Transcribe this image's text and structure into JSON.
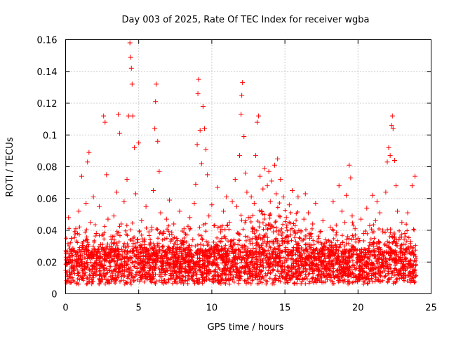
{
  "chart_data": {
    "type": "scatter",
    "title": "Day 003 of 2025, Rate Of TEC Index for receiver wgba",
    "xlabel": "GPS time / hours",
    "ylabel": "ROTI / TECUs",
    "xlim": [
      0,
      25
    ],
    "ylim": [
      0,
      0.16
    ],
    "x_ticks": [
      0,
      5,
      10,
      15,
      20,
      25
    ],
    "x_tick_labels": [
      "0",
      "5",
      "10",
      "15",
      "20",
      "25"
    ],
    "y_ticks": [
      0,
      0.02,
      0.04,
      0.06,
      0.08,
      0.1,
      0.12,
      0.14,
      0.16
    ],
    "y_tick_labels": [
      "0",
      "0.02",
      "0.04",
      "0.06",
      "0.08",
      "0.1",
      "0.12",
      "0.14",
      "0.16"
    ],
    "grid": true,
    "marker": "+",
    "series": [
      {
        "name": "ROTI",
        "color": "#ff0000",
        "points": [
          [
            0.1,
            0.021
          ],
          [
            0.2,
            0.048
          ],
          [
            0.3,
            0.012
          ],
          [
            0.4,
            0.035
          ],
          [
            0.5,
            0.018
          ],
          [
            0.6,
            0.027
          ],
          [
            0.7,
            0.041
          ],
          [
            0.8,
            0.015
          ],
          [
            0.9,
            0.052
          ],
          [
            1.0,
            0.024
          ],
          [
            1.1,
            0.074
          ],
          [
            1.2,
            0.033
          ],
          [
            1.3,
            0.019
          ],
          [
            1.4,
            0.057
          ],
          [
            1.5,
            0.083
          ],
          [
            1.6,
            0.089
          ],
          [
            1.7,
            0.045
          ],
          [
            1.8,
            0.026
          ],
          [
            1.9,
            0.061
          ],
          [
            2.0,
            0.014
          ],
          [
            2.1,
            0.038
          ],
          [
            2.2,
            0.022
          ],
          [
            2.3,
            0.055
          ],
          [
            2.4,
            0.031
          ],
          [
            2.5,
            0.017
          ],
          [
            2.6,
            0.112
          ],
          [
            2.7,
            0.108
          ],
          [
            2.8,
            0.075
          ],
          [
            2.9,
            0.047
          ],
          [
            3.0,
            0.023
          ],
          [
            3.1,
            0.036
          ],
          [
            3.2,
            0.013
          ],
          [
            3.3,
            0.049
          ],
          [
            3.4,
            0.028
          ],
          [
            3.5,
            0.064
          ],
          [
            3.6,
            0.113
          ],
          [
            3.7,
            0.101
          ],
          [
            3.8,
            0.044
          ],
          [
            3.9,
            0.018
          ],
          [
            4.0,
            0.058
          ],
          [
            4.1,
            0.029
          ],
          [
            4.2,
            0.072
          ],
          [
            4.3,
            0.112
          ],
          [
            4.4,
            0.158
          ],
          [
            4.45,
            0.149
          ],
          [
            4.5,
            0.142
          ],
          [
            4.55,
            0.132
          ],
          [
            4.6,
            0.112
          ],
          [
            4.7,
            0.092
          ],
          [
            4.8,
            0.063
          ],
          [
            4.9,
            0.034
          ],
          [
            5.0,
            0.095
          ],
          [
            5.1,
            0.021
          ],
          [
            5.2,
            0.046
          ],
          [
            5.3,
            0.011
          ],
          [
            5.4,
            0.031
          ],
          [
            5.5,
            0.055
          ],
          [
            5.6,
            0.024
          ],
          [
            5.7,
            0.039
          ],
          [
            5.8,
            0.017
          ],
          [
            5.9,
            0.042
          ],
          [
            6.0,
            0.065
          ],
          [
            6.1,
            0.104
          ],
          [
            6.15,
            0.121
          ],
          [
            6.2,
            0.132
          ],
          [
            6.3,
            0.096
          ],
          [
            6.4,
            0.077
          ],
          [
            6.5,
            0.051
          ],
          [
            6.6,
            0.027
          ],
          [
            6.7,
            0.038
          ],
          [
            6.8,
            0.014
          ],
          [
            6.9,
            0.047
          ],
          [
            7.0,
            0.022
          ],
          [
            7.1,
            0.059
          ],
          [
            7.2,
            0.033
          ],
          [
            7.3,
            0.026
          ],
          [
            7.4,
            0.044
          ],
          [
            7.5,
            0.018
          ],
          [
            7.6,
            0.035
          ],
          [
            7.7,
            0.023
          ],
          [
            7.8,
            0.052
          ],
          [
            7.9,
            0.029
          ],
          [
            8.0,
            0.016
          ],
          [
            8.1,
            0.041
          ],
          [
            8.2,
            0.025
          ],
          [
            8.3,
            0.037
          ],
          [
            8.4,
            0.013
          ],
          [
            8.5,
            0.048
          ],
          [
            8.6,
            0.021
          ],
          [
            8.7,
            0.034
          ],
          [
            8.8,
            0.057
          ],
          [
            8.9,
            0.069
          ],
          [
            9.0,
            0.094
          ],
          [
            9.05,
            0.126
          ],
          [
            9.1,
            0.135
          ],
          [
            9.2,
            0.103
          ],
          [
            9.3,
            0.082
          ],
          [
            9.4,
            0.118
          ],
          [
            9.5,
            0.104
          ],
          [
            9.6,
            0.091
          ],
          [
            9.7,
            0.075
          ],
          [
            9.8,
            0.049
          ],
          [
            9.9,
            0.028
          ],
          [
            10.0,
            0.056
          ],
          [
            10.1,
            0.019
          ],
          [
            10.2,
            0.043
          ],
          [
            10.3,
            0.031
          ],
          [
            10.4,
            0.067
          ],
          [
            10.5,
            0.024
          ],
          [
            10.6,
            0.039
          ],
          [
            10.7,
            0.015
          ],
          [
            10.8,
            0.052
          ],
          [
            10.9,
            0.036
          ],
          [
            11.0,
            0.061
          ],
          [
            11.1,
            0.027
          ],
          [
            11.2,
            0.045
          ],
          [
            11.3,
            0.018
          ],
          [
            11.4,
            0.058
          ],
          [
            11.5,
            0.032
          ],
          [
            11.6,
            0.072
          ],
          [
            11.7,
            0.055
          ],
          [
            11.8,
            0.038
          ],
          [
            11.9,
            0.087
          ],
          [
            12.0,
            0.113
          ],
          [
            12.05,
            0.125
          ],
          [
            12.1,
            0.133
          ],
          [
            12.2,
            0.099
          ],
          [
            12.3,
            0.076
          ],
          [
            12.4,
            0.064
          ],
          [
            12.5,
            0.048
          ],
          [
            12.6,
            0.034
          ],
          [
            12.7,
            0.061
          ],
          [
            12.8,
            0.023
          ],
          [
            12.9,
            0.057
          ],
          [
            13.0,
            0.087
          ],
          [
            13.1,
            0.108
          ],
          [
            13.2,
            0.112
          ],
          [
            13.3,
            0.074
          ],
          [
            13.4,
            0.052
          ],
          [
            13.5,
            0.066
          ],
          [
            13.6,
            0.079
          ],
          [
            13.7,
            0.043
          ],
          [
            13.8,
            0.068
          ],
          [
            13.9,
            0.077
          ],
          [
            14.0,
            0.058
          ],
          [
            14.1,
            0.071
          ],
          [
            14.2,
            0.039
          ],
          [
            14.3,
            0.081
          ],
          [
            14.4,
            0.063
          ],
          [
            14.5,
            0.085
          ],
          [
            14.6,
            0.049
          ],
          [
            14.7,
            0.072
          ],
          [
            14.8,
            0.033
          ],
          [
            14.9,
            0.061
          ],
          [
            15.0,
            0.027
          ],
          [
            15.1,
            0.048
          ],
          [
            15.2,
            0.022
          ],
          [
            15.3,
            0.056
          ],
          [
            15.4,
            0.037
          ],
          [
            15.5,
            0.065
          ],
          [
            15.6,
            0.019
          ],
          [
            15.7,
            0.043
          ],
          [
            15.8,
            0.031
          ],
          [
            15.9,
            0.061
          ],
          [
            16.0,
            0.024
          ],
          [
            16.1,
            0.039
          ],
          [
            16.2,
            0.014
          ],
          [
            16.3,
            0.047
          ],
          [
            16.4,
            0.063
          ],
          [
            16.5,
            0.028
          ],
          [
            16.6,
            0.051
          ],
          [
            16.7,
            0.035
          ],
          [
            16.8,
            0.018
          ],
          [
            16.9,
            0.044
          ],
          [
            17.0,
            0.025
          ],
          [
            17.1,
            0.057
          ],
          [
            17.2,
            0.033
          ],
          [
            17.3,
            0.012
          ],
          [
            17.4,
            0.039
          ],
          [
            17.5,
            0.021
          ],
          [
            17.6,
            0.046
          ],
          [
            17.7,
            0.017
          ],
          [
            17.8,
            0.034
          ],
          [
            17.9,
            0.009
          ],
          [
            18.0,
            0.028
          ],
          [
            18.1,
            0.042
          ],
          [
            18.2,
            0.019
          ],
          [
            18.3,
            0.058
          ],
          [
            18.4,
            0.024
          ],
          [
            18.5,
            0.037
          ],
          [
            18.6,
            0.015
          ],
          [
            18.7,
            0.068
          ],
          [
            18.8,
            0.031
          ],
          [
            18.9,
            0.052
          ],
          [
            19.0,
            0.022
          ],
          [
            19.1,
            0.045
          ],
          [
            19.2,
            0.062
          ],
          [
            19.3,
            0.036
          ],
          [
            19.4,
            0.081
          ],
          [
            19.5,
            0.073
          ],
          [
            19.6,
            0.049
          ],
          [
            19.7,
            0.027
          ],
          [
            19.8,
            0.041
          ],
          [
            19.9,
            0.016
          ],
          [
            20.0,
            0.035
          ],
          [
            20.1,
            0.023
          ],
          [
            20.2,
            0.047
          ],
          [
            20.3,
            0.012
          ],
          [
            20.4,
            0.038
          ],
          [
            20.5,
            0.026
          ],
          [
            20.6,
            0.054
          ],
          [
            20.7,
            0.019
          ],
          [
            20.8,
            0.043
          ],
          [
            20.9,
            0.031
          ],
          [
            21.0,
            0.062
          ],
          [
            21.1,
            0.024
          ],
          [
            21.2,
            0.046
          ],
          [
            21.3,
            0.058
          ],
          [
            21.4,
            0.033
          ],
          [
            21.5,
            0.051
          ],
          [
            21.6,
            0.018
          ],
          [
            21.7,
            0.039
          ],
          [
            21.8,
            0.026
          ],
          [
            21.9,
            0.064
          ],
          [
            22.0,
            0.083
          ],
          [
            22.1,
            0.092
          ],
          [
            22.2,
            0.087
          ],
          [
            22.3,
            0.106
          ],
          [
            22.35,
            0.112
          ],
          [
            22.4,
            0.104
          ],
          [
            22.5,
            0.084
          ],
          [
            22.6,
            0.068
          ],
          [
            22.7,
            0.052
          ],
          [
            22.8,
            0.034
          ],
          [
            22.9,
            0.023
          ],
          [
            23.0,
            0.045
          ],
          [
            23.1,
            0.013
          ],
          [
            23.2,
            0.038
          ],
          [
            23.3,
            0.027
          ],
          [
            23.4,
            0.051
          ],
          [
            23.5,
            0.019
          ],
          [
            23.6,
            0.033
          ],
          [
            23.7,
            0.068
          ],
          [
            23.8,
            0.024
          ],
          [
            23.9,
            0.074
          ]
        ]
      }
    ]
  }
}
